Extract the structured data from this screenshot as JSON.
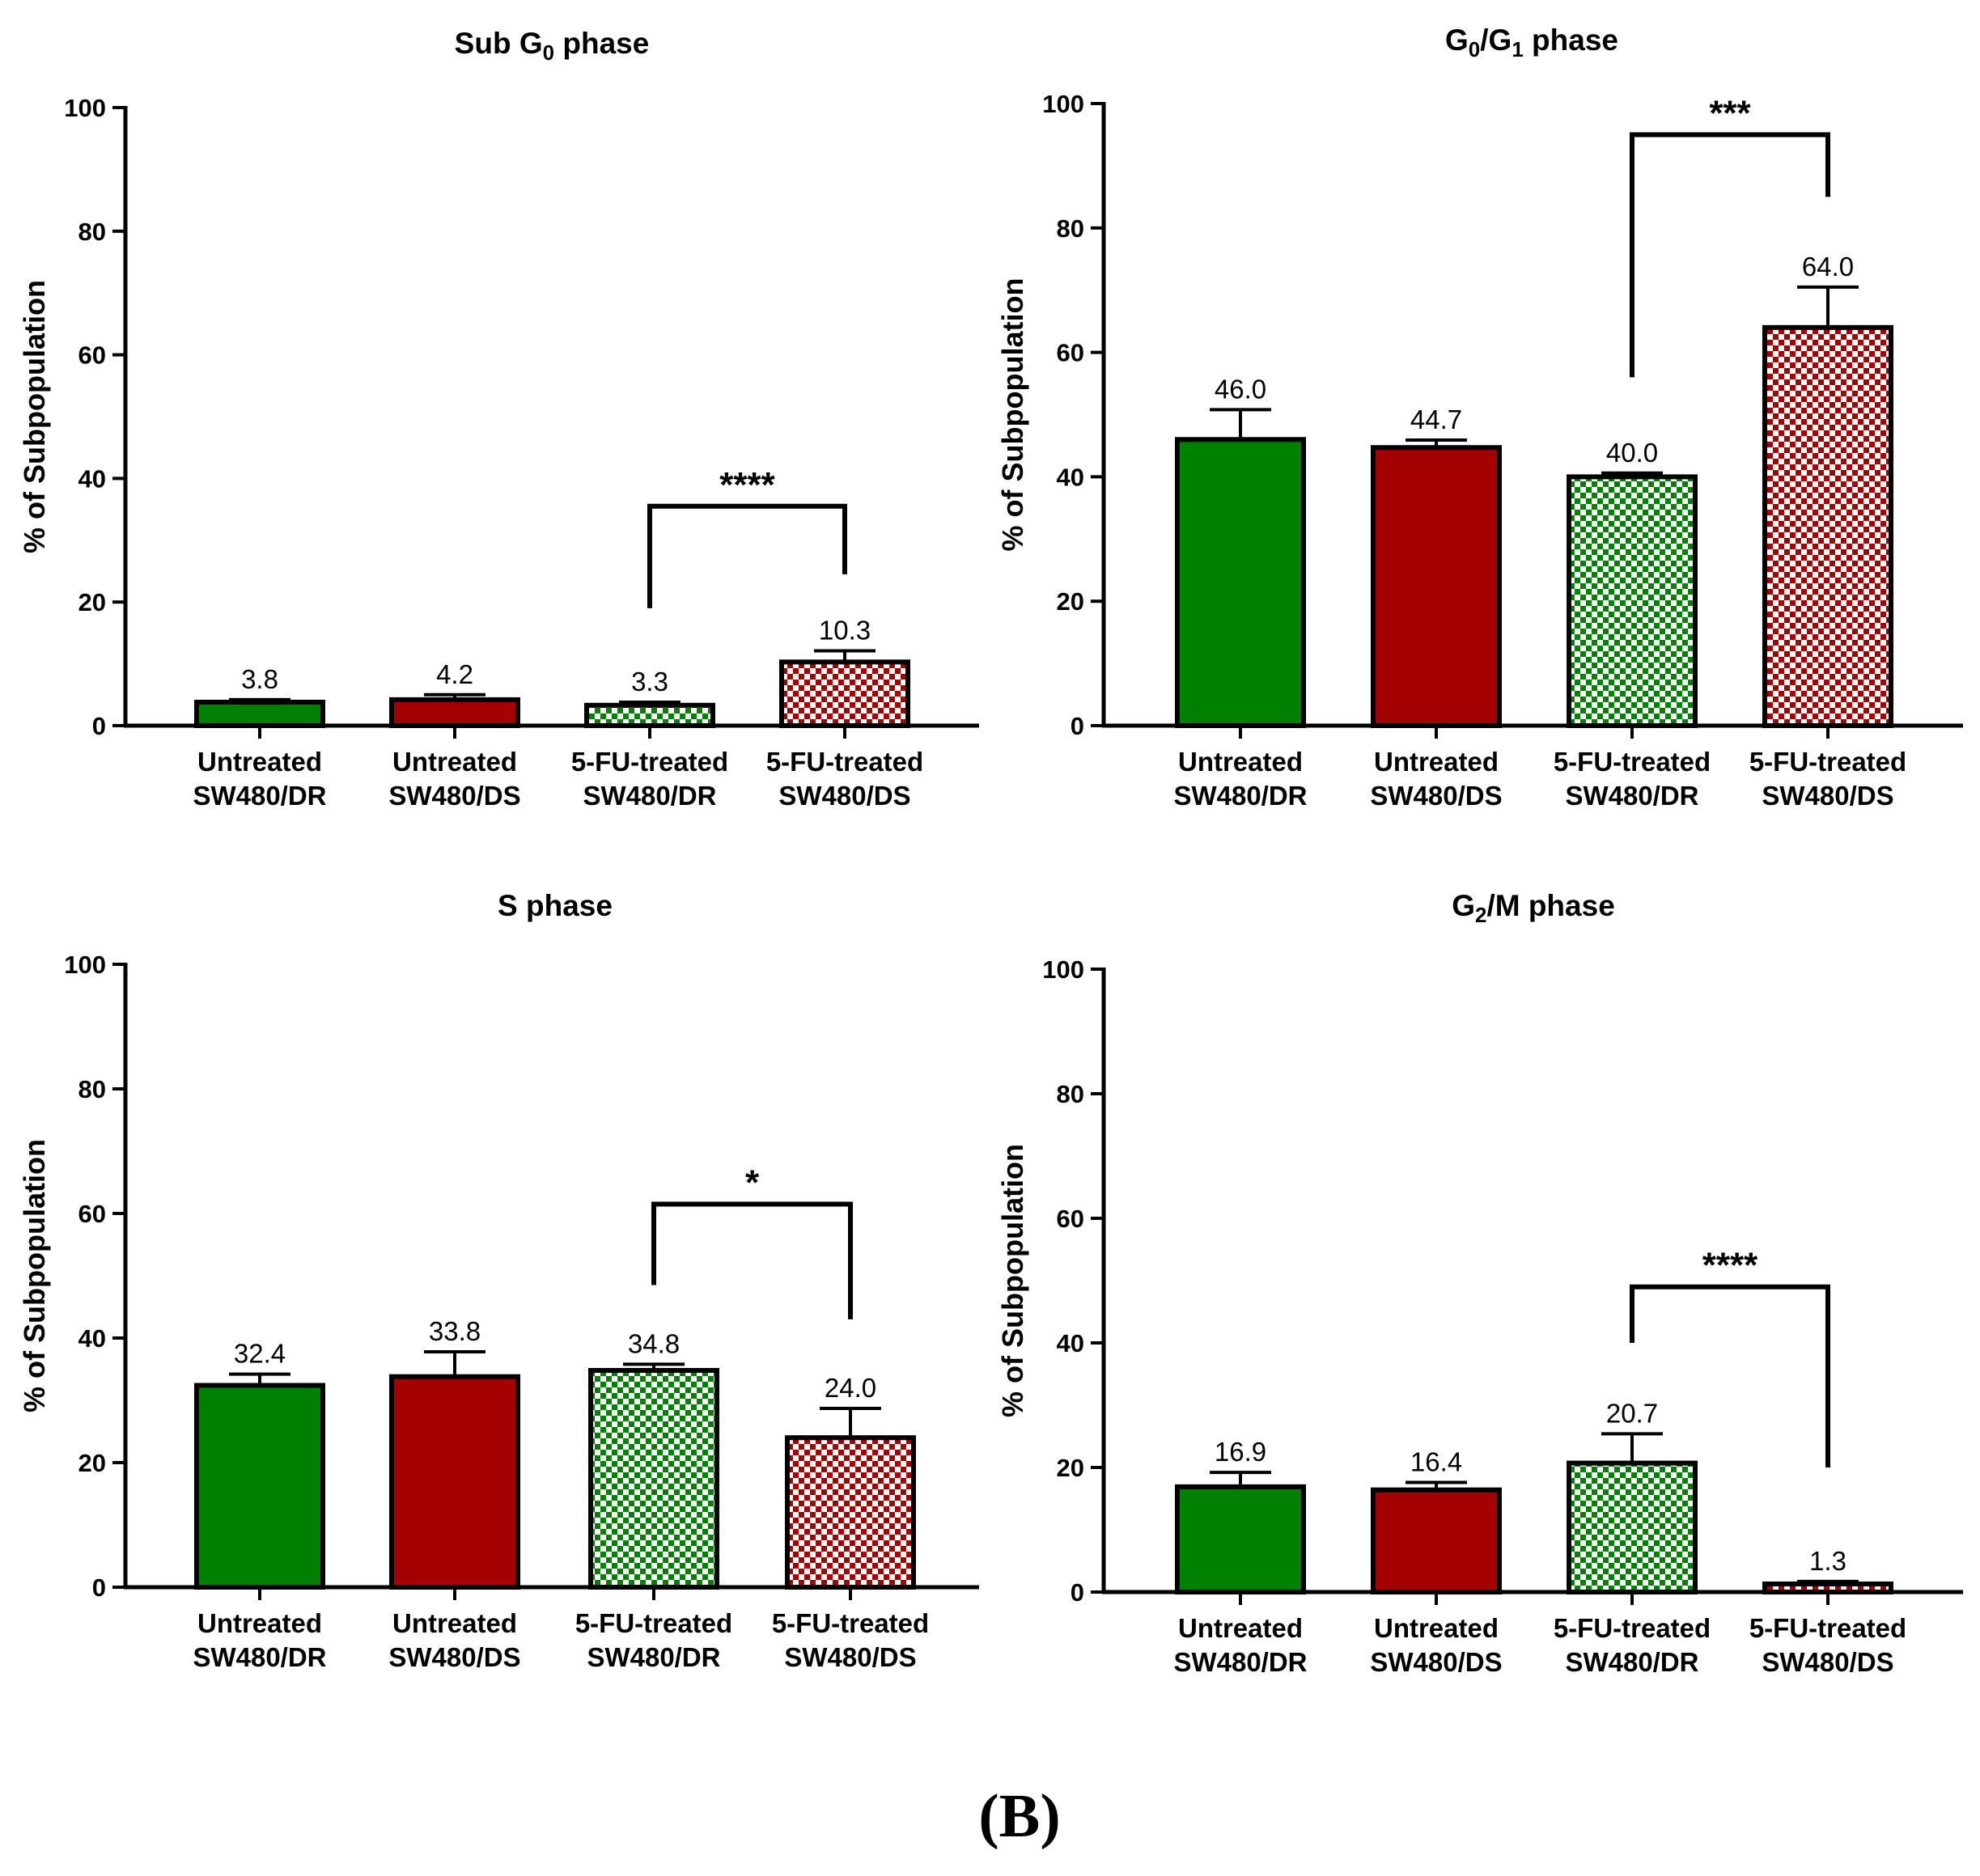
{
  "figure_label": "(B)",
  "colors": {
    "green": "#008000",
    "red": "#a50000",
    "axis": "#000000"
  },
  "chart_data": [
    {
      "type": "bar",
      "title_parts": [
        {
          "text": "Sub G",
          "sub": false
        },
        {
          "text": "0",
          "sub": true
        },
        {
          "text": " phase",
          "sub": false
        }
      ],
      "ylabel": "% of Subpopulation",
      "ylim": [
        0,
        100
      ],
      "yticks": [
        "0",
        "20",
        "40",
        "60",
        "80",
        "100"
      ],
      "categories": [
        {
          "line1": "Untreated",
          "line2": "SW480/DR",
          "fill": "green",
          "pattern": false
        },
        {
          "line1": "Untreated",
          "line2": "SW480/DS",
          "fill": "red",
          "pattern": false
        },
        {
          "line1": "5-FU-treated",
          "line2": "SW480/DR",
          "fill": "green",
          "pattern": true
        },
        {
          "line1": "5-FU-treated",
          "line2": "SW480/DS",
          "fill": "red",
          "pattern": true
        }
      ],
      "values": [
        3.8,
        4.2,
        3.3,
        10.3
      ],
      "value_labels": [
        "3.8",
        "4.2",
        "3.3",
        "10.3"
      ],
      "errors": [
        0.4,
        0.8,
        0.5,
        1.8
      ],
      "significance": {
        "from": 2,
        "to": 3,
        "label": "****",
        "bracket_y": 35.5,
        "left_bottom": 19.0,
        "right_bottom": 24.5
      }
    },
    {
      "type": "bar",
      "title_parts": [
        {
          "text": "G",
          "sub": false
        },
        {
          "text": "0",
          "sub": true
        },
        {
          "text": "/G",
          "sub": false
        },
        {
          "text": "1",
          "sub": true
        },
        {
          "text": " phase",
          "sub": false
        }
      ],
      "ylabel": "% of Subpopulation",
      "ylim": [
        0,
        100
      ],
      "yticks": [
        "0",
        "20",
        "40",
        "60",
        "80",
        "100"
      ],
      "categories": [
        {
          "line1": "Untreated",
          "line2": "SW480/DR",
          "fill": "green",
          "pattern": false
        },
        {
          "line1": "Untreated",
          "line2": "SW480/DS",
          "fill": "red",
          "pattern": false
        },
        {
          "line1": "5-FU-treated",
          "line2": "SW480/DR",
          "fill": "green",
          "pattern": true
        },
        {
          "line1": "5-FU-treated",
          "line2": "SW480/DS",
          "fill": "red",
          "pattern": true
        }
      ],
      "values": [
        46.0,
        44.7,
        40.0,
        64.0
      ],
      "value_labels": [
        "46.0",
        "44.7",
        "40.0",
        "64.0"
      ],
      "errors": [
        4.8,
        1.2,
        0.6,
        6.5
      ],
      "significance": {
        "from": 2,
        "to": 3,
        "label": "***",
        "bracket_y": 95.0,
        "left_bottom": 56.0,
        "right_bottom": 85.0
      }
    },
    {
      "type": "bar",
      "title_parts": [
        {
          "text": "S phase",
          "sub": false
        }
      ],
      "ylabel": "% of Subpopulation",
      "ylim": [
        0,
        100
      ],
      "yticks": [
        "0",
        "20",
        "40",
        "60",
        "80",
        "100"
      ],
      "categories": [
        {
          "line1": "Untreated",
          "line2": "SW480/DR",
          "fill": "green",
          "pattern": false
        },
        {
          "line1": "Untreated",
          "line2": "SW480/DS",
          "fill": "red",
          "pattern": false
        },
        {
          "line1": "5-FU-treated",
          "line2": "SW480/DR",
          "fill": "green",
          "pattern": true
        },
        {
          "line1": "5-FU-treated",
          "line2": "SW480/DS",
          "fill": "red",
          "pattern": true
        }
      ],
      "values": [
        32.4,
        33.8,
        34.8,
        24.0
      ],
      "value_labels": [
        "32.4",
        "33.8",
        "34.8",
        "24.0"
      ],
      "errors": [
        1.8,
        4.0,
        1.0,
        4.7
      ],
      "significance": {
        "from": 2,
        "to": 3,
        "label": "*",
        "bracket_y": 61.5,
        "left_bottom": 48.5,
        "right_bottom": 43.0
      }
    },
    {
      "type": "bar",
      "title_parts": [
        {
          "text": "G",
          "sub": false
        },
        {
          "text": "2",
          "sub": true
        },
        {
          "text": "/M phase",
          "sub": false
        }
      ],
      "ylabel": "% of Subpopulation",
      "ylim": [
        0,
        100
      ],
      "yticks": [
        "0",
        "20",
        "40",
        "60",
        "80",
        "100"
      ],
      "categories": [
        {
          "line1": "Untreated",
          "line2": "SW480/DR",
          "fill": "green",
          "pattern": false
        },
        {
          "line1": "Untreated",
          "line2": "SW480/DS",
          "fill": "red",
          "pattern": false
        },
        {
          "line1": "5-FU-treated",
          "line2": "SW480/DR",
          "fill": "green",
          "pattern": true
        },
        {
          "line1": "5-FU-treated",
          "line2": "SW480/DS",
          "fill": "red",
          "pattern": true
        }
      ],
      "values": [
        16.9,
        16.4,
        20.7,
        1.3
      ],
      "value_labels": [
        "16.9",
        "16.4",
        "20.7",
        "1.3"
      ],
      "errors": [
        2.3,
        1.2,
        4.7,
        0.4
      ],
      "significance": {
        "from": 2,
        "to": 3,
        "label": "****",
        "bracket_y": 49.0,
        "left_bottom": 40.0,
        "right_bottom": 20.0
      }
    }
  ]
}
